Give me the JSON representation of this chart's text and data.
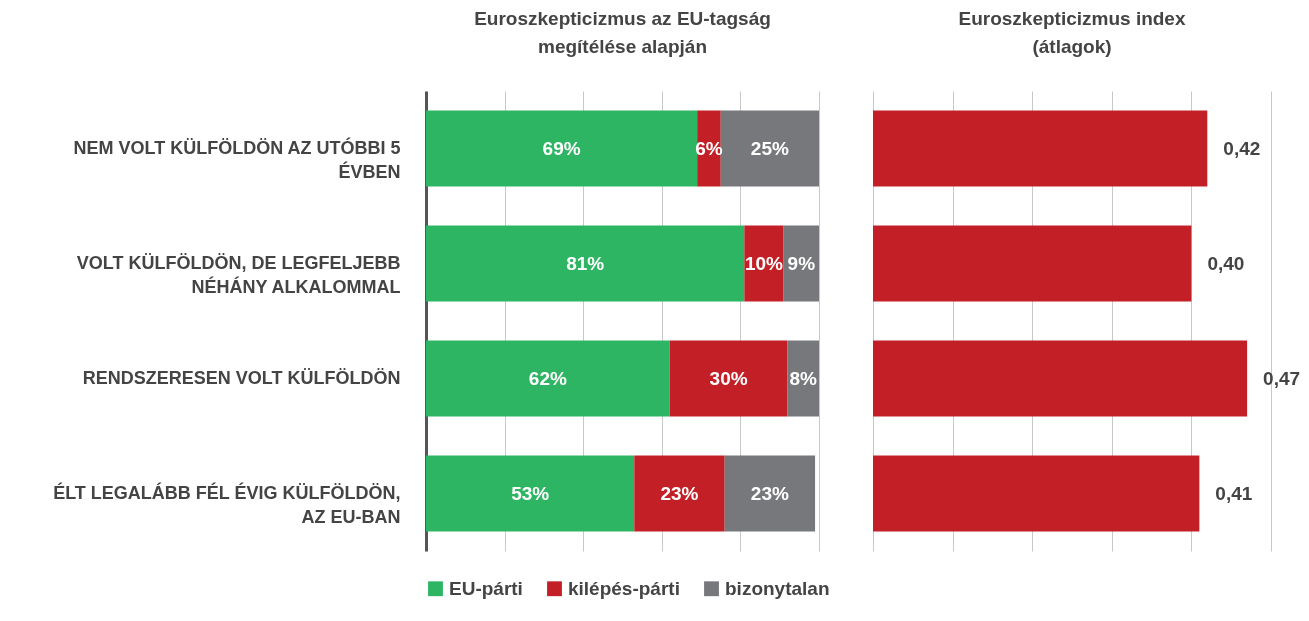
{
  "chart_data": [
    {
      "type": "bar",
      "orientation": "horizontal",
      "stacked": true,
      "title": "Euroszkepticizmus az EU-tagság megítélése alapján",
      "categories": [
        "NEM VOLT KÜLFÖLDÖN AZ UTÓBBI 5 ÉVBEN",
        "VOLT KÜLFÖLDÖN, DE LEGFELJEBB NÉHÁNY ALKALOMMAL",
        "RENDSZERESEN VOLT KÜLFÖLDÖN",
        "ÉLT LEGALÁBB FÉL ÉVIG KÜLFÖLDÖN, AZ EU-BAN"
      ],
      "series": [
        {
          "name": "EU-párti",
          "color": "#2db563",
          "values": [
            69,
            81,
            62,
            53
          ],
          "value_labels": [
            "69%",
            "81%",
            "62%",
            "53%"
          ]
        },
        {
          "name": "kilépés-párti",
          "color": "#c22026",
          "values": [
            6,
            10,
            30,
            23
          ],
          "value_labels": [
            "6%",
            "10%",
            "30%",
            "23%"
          ]
        },
        {
          "name": "bizonytalan",
          "color": "#77787b",
          "values": [
            25,
            9,
            8,
            23
          ],
          "value_labels": [
            "25%",
            "9%",
            "8%",
            "23%"
          ]
        }
      ],
      "xlim": [
        0,
        100
      ],
      "xticks": [
        {
          "value": 0,
          "label": null
        },
        {
          "value": 20,
          "label": null
        },
        {
          "value": 40,
          "label": null
        },
        {
          "value": 60,
          "label": null
        },
        {
          "value": 80,
          "label": null
        },
        {
          "value": 100,
          "label": null
        }
      ],
      "grid": "x",
      "tick_labels": "y",
      "legend": "bottom"
    },
    {
      "type": "bar",
      "orientation": "horizontal",
      "title": "Euroszkepticizmus index (átlagok)",
      "categories": [
        null,
        null,
        null,
        null
      ],
      "series": [
        {
          "color": "#c22026",
          "values": [
            0.42,
            0.4,
            0.47,
            0.41
          ],
          "value_labels": [
            "0,42",
            "0,40",
            "0,47",
            "0,41"
          ]
        }
      ],
      "xlim": [
        0,
        0.5
      ],
      "xticks": [
        {
          "value": 0,
          "label": null
        },
        {
          "value": 0.1,
          "label": null
        },
        {
          "value": 0.2,
          "label": null
        },
        {
          "value": 0.3,
          "label": null
        },
        {
          "value": 0.4,
          "label": null
        },
        {
          "value": 0.5,
          "label": null
        }
      ],
      "grid": "x",
      "tick_labels": false
    }
  ]
}
